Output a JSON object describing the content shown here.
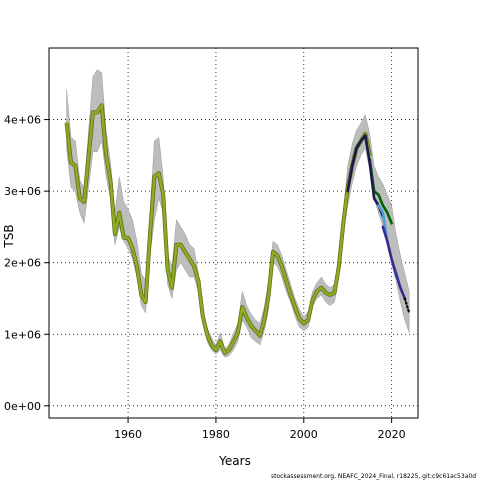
{
  "chart_data": {
    "type": "line",
    "xlabel": "Years",
    "ylabel": "TSB",
    "xlim": [
      1942,
      2026
    ],
    "ylim": [
      -170000,
      5000000
    ],
    "x_ticks": [
      1960,
      1980,
      2000,
      2020
    ],
    "x_tick_labels": [
      "1960",
      "1980",
      "2000",
      "2020"
    ],
    "y_ticks": [
      0,
      1000000,
      2000000,
      3000000,
      4000000
    ],
    "y_tick_labels": [
      "0e+00",
      "1e+06",
      "2e+06",
      "3e+06",
      "4e+06"
    ],
    "grid": true,
    "credit": "stockassessment.org, NEAFC_2024_Final, r18225, git:c9c61ac53a0d",
    "band": {
      "x": [
        1946,
        1947,
        1948,
        1949,
        1950,
        1952,
        1953,
        1954,
        1955,
        1956,
        1957,
        1958,
        1959,
        1960,
        1961,
        1962,
        1963,
        1964,
        1965,
        1966,
        1967,
        1968,
        1969,
        1970,
        1971,
        1972,
        1973,
        1974,
        1975,
        1976,
        1977,
        1978,
        1979,
        1980,
        1981,
        1982,
        1983,
        1984,
        1985,
        1986,
        1987,
        1988,
        1989,
        1990,
        1991,
        1992,
        1993,
        1994,
        1995,
        1996,
        1997,
        1998,
        1999,
        2000,
        2001,
        2002,
        2003,
        2004,
        2005,
        2006,
        2007,
        2008,
        2009,
        2010,
        2011,
        2012,
        2013,
        2014,
        2015,
        2016,
        2017,
        2018,
        2019,
        2020,
        2021,
        2022,
        2023,
        2024
      ],
      "upper": [
        4420000,
        3750000,
        3700000,
        3150000,
        3050000,
        4600000,
        4700000,
        4650000,
        3850000,
        3400000,
        2700000,
        3200000,
        2850000,
        2750000,
        2600000,
        2300000,
        1850000,
        1750000,
        2700000,
        3700000,
        3750000,
        3200000,
        2100000,
        1950000,
        2600000,
        2500000,
        2400000,
        2250000,
        2200000,
        1850000,
        1350000,
        1100000,
        950000,
        850000,
        1020000,
        800000,
        860000,
        1020000,
        1150000,
        1600000,
        1400000,
        1280000,
        1200000,
        1150000,
        1380000,
        1750000,
        2300000,
        2250000,
        2100000,
        1900000,
        1700000,
        1500000,
        1350000,
        1250000,
        1320000,
        1600000,
        1720000,
        1800000,
        1700000,
        1650000,
        1700000,
        2100000,
        2700000,
        3350000,
        3650000,
        3850000,
        3950000,
        4070000,
        3800000,
        3350000,
        3200000,
        3100000,
        2950000,
        2800000,
        2400000,
        2100000,
        1850000,
        1600000
      ],
      "lower": [
        3600000,
        3050000,
        3000000,
        2700000,
        2550000,
        3550000,
        3550000,
        3700000,
        3200000,
        2900000,
        2250000,
        2500000,
        2300000,
        2200000,
        2050000,
        1800000,
        1400000,
        1300000,
        2100000,
        2600000,
        2900000,
        2700000,
        1700000,
        1500000,
        1900000,
        2000000,
        1900000,
        1800000,
        1800000,
        1600000,
        1150000,
        900000,
        780000,
        720000,
        780000,
        680000,
        700000,
        780000,
        900000,
        1200000,
        1100000,
        950000,
        900000,
        850000,
        1050000,
        1350000,
        2000000,
        1950000,
        1800000,
        1600000,
        1450000,
        1250000,
        1100000,
        1050000,
        1100000,
        1400000,
        1500000,
        1550000,
        1450000,
        1400000,
        1450000,
        1800000,
        2400000,
        2800000,
        3100000,
        3350000,
        3500000,
        3600000,
        3300000,
        2900000,
        2700000,
        2500000,
        2300000,
        2050000,
        1750000,
        1450000,
        1200000,
        1020000
      ]
    },
    "series": [
      {
        "color": "#8faa23",
        "x": [
          1946,
          1947,
          1948,
          1949,
          1950,
          1952,
          1953,
          1954,
          1955,
          1956,
          1957,
          1958,
          1959,
          1960,
          1961,
          1962,
          1963,
          1964,
          1965,
          1966,
          1967,
          1968,
          1969,
          1970,
          1971,
          1972,
          1973,
          1974,
          1975,
          1976,
          1977,
          1978,
          1979,
          1980,
          1981,
          1982,
          1983,
          1984,
          1985,
          1986,
          1987,
          1988,
          1989,
          1990,
          1991,
          1992,
          1993,
          1994,
          1995,
          1996,
          1997,
          1998,
          1999,
          2000,
          2001,
          2002,
          2003,
          2004,
          2005,
          2006,
          2007,
          2008,
          2009,
          2010,
          2011,
          2012,
          2013,
          2014,
          2015
        ],
        "values": [
          3950000,
          3400000,
          3350000,
          2900000,
          2850000,
          4100000,
          4100000,
          4200000,
          3500000,
          3150000,
          2400000,
          2700000,
          2350000,
          2350000,
          2200000,
          1950000,
          1550000,
          1450000,
          2400000,
          3200000,
          3250000,
          2950000,
          1900000,
          1650000,
          2250000,
          2250000,
          2150000,
          2050000,
          1950000,
          1750000,
          1250000,
          1000000,
          850000,
          780000,
          900000,
          740000,
          780000,
          900000,
          1020000,
          1380000,
          1230000,
          1120000,
          1050000,
          980000,
          1200000,
          1550000,
          2150000,
          2100000,
          1950000,
          1750000,
          1550000,
          1380000,
          1220000,
          1150000,
          1200000,
          1480000,
          1600000,
          1650000,
          1580000,
          1550000,
          1580000,
          1950000,
          2550000,
          3050000,
          3350000,
          3600000,
          3700000,
          3800000,
          3500000
        ]
      },
      {
        "color": "#006400",
        "x": [
          2015,
          2016,
          2017,
          2018,
          2019,
          2020
        ],
        "values": [
          3450000,
          3000000,
          2950000,
          2800000,
          2700000,
          2550000
        ]
      },
      {
        "color": "#1a1a4d",
        "x": [
          2010,
          2011,
          2012,
          2013,
          2014,
          2015,
          2016,
          2017,
          2018
        ],
        "values": [
          3000000,
          3350000,
          3600000,
          3700000,
          3780000,
          3400000,
          2900000,
          2800000,
          2650000
        ]
      },
      {
        "color": "#4f9bd9",
        "x": [
          2017,
          2018,
          2019,
          2020,
          2021
        ],
        "values": [
          2800000,
          2700000,
          2300000,
          2050000,
          1800000
        ]
      },
      {
        "color": "#3b2a8e",
        "x": [
          2018,
          2019,
          2020,
          2021,
          2022,
          2023
        ],
        "values": [
          2500000,
          2300000,
          2050000,
          1850000,
          1650000,
          1500000
        ]
      },
      {
        "color": "#000000",
        "dashed": true,
        "x": [
          2023,
          2024
        ],
        "values": [
          1500000,
          1300000
        ]
      }
    ]
  }
}
